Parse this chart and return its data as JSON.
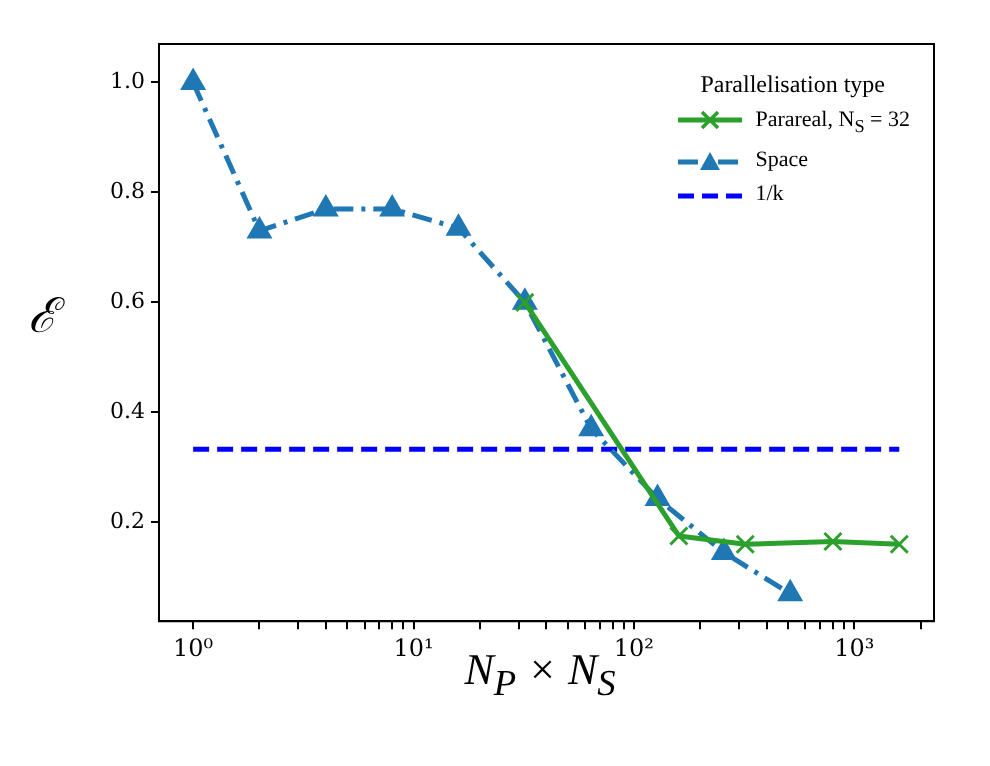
{
  "chart_data": {
    "type": "line",
    "xlabel": "N$_{P}$ × N$_{S}$",
    "ylabel": "ℰ",
    "legend_title": "Parallelisation type",
    "legend": "top right",
    "grid": false,
    "log": "x",
    "xlim": [
      0.71,
      2300
    ],
    "ylim": [
      0.02,
      1.07
    ],
    "xticks": [
      {
        "value": 1,
        "label": "10⁰"
      },
      {
        "value": 2,
        "label": null
      },
      {
        "value": 3,
        "label": null
      },
      {
        "value": 4,
        "label": null
      },
      {
        "value": 5,
        "label": null
      },
      {
        "value": 6,
        "label": null
      },
      {
        "value": 7,
        "label": null
      },
      {
        "value": 8,
        "label": null
      },
      {
        "value": 9,
        "label": null
      },
      {
        "value": 10,
        "label": "10¹"
      },
      {
        "value": 20,
        "label": null
      },
      {
        "value": 30,
        "label": null
      },
      {
        "value": 40,
        "label": null
      },
      {
        "value": 50,
        "label": null
      },
      {
        "value": 60,
        "label": null
      },
      {
        "value": 70,
        "label": null
      },
      {
        "value": 80,
        "label": null
      },
      {
        "value": 90,
        "label": null
      },
      {
        "value": 100,
        "label": "10²"
      },
      {
        "value": 200,
        "label": null
      },
      {
        "value": 300,
        "label": null
      },
      {
        "value": 400,
        "label": null
      },
      {
        "value": 500,
        "label": null
      },
      {
        "value": 600,
        "label": null
      },
      {
        "value": 700,
        "label": null
      },
      {
        "value": 800,
        "label": null
      },
      {
        "value": 900,
        "label": null
      },
      {
        "value": 1000,
        "label": "10³"
      },
      {
        "value": 2000,
        "label": null
      }
    ],
    "yticks": [
      0.2,
      0.4,
      0.6,
      0.8,
      {
        "value": 1,
        "label": "1.0"
      }
    ],
    "series": [
      {
        "name": "Parareal, N$_{S}$ = 32",
        "color": "#2ca02c",
        "marker": "cross",
        "line_style": "solid",
        "x": [
          32,
          160,
          320,
          800,
          1600
        ],
        "values": [
          0.6,
          0.175,
          0.16,
          0.165,
          0.16
        ]
      },
      {
        "name": "Space",
        "color": "#1f77b4",
        "marker": "triangle",
        "line_style": "dashdot",
        "x": [
          1,
          2,
          4,
          8,
          16,
          32,
          64,
          128,
          256,
          512
        ],
        "values": [
          1.0,
          0.73,
          0.77,
          0.77,
          0.735,
          0.6,
          0.37,
          0.243,
          0.145,
          0.07
        ]
      },
      {
        "name": "1/k",
        "color": "#0000ff",
        "marker": "none",
        "line_style": "dashed",
        "x": [
          1,
          1600
        ],
        "values": [
          0.333,
          0.333
        ]
      }
    ]
  }
}
